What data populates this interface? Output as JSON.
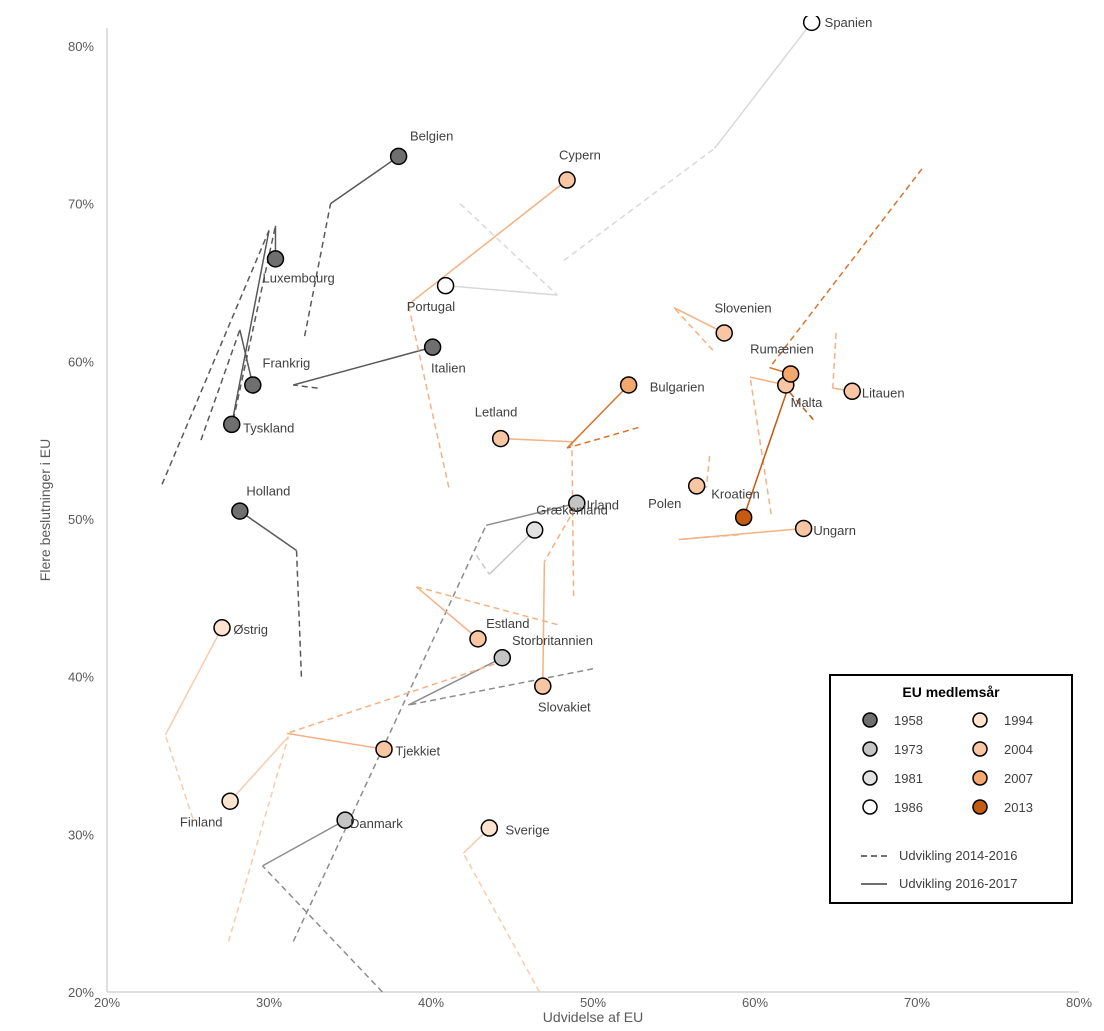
{
  "chart_data": {
    "type": "scatter",
    "title": "",
    "xlabel": "Udvidelse af EU",
    "ylabel": "Flere beslutninger i EU",
    "xlim": [
      0.2,
      0.8
    ],
    "ylim": [
      0.2,
      0.83
    ],
    "xticks": [
      {
        "v": 0.2,
        "label": "20%"
      },
      {
        "v": 0.3,
        "label": "30%"
      },
      {
        "v": 0.4,
        "label": "40%"
      },
      {
        "v": 0.5,
        "label": "50%"
      },
      {
        "v": 0.6,
        "label": "60%"
      },
      {
        "v": 0.7,
        "label": "70%"
      },
      {
        "v": 0.8,
        "label": "80%"
      }
    ],
    "yticks": [
      {
        "v": 0.2,
        "label": "20%"
      },
      {
        "v": 0.3,
        "label": "30%"
      },
      {
        "v": 0.4,
        "label": "40%"
      },
      {
        "v": 0.5,
        "label": "50%"
      },
      {
        "v": 0.6,
        "label": "60%"
      },
      {
        "v": 0.7,
        "label": "70%"
      },
      {
        "v": 0.8,
        "label": "80%"
      }
    ],
    "grid": false,
    "groups": {
      "1958": {
        "fill": "#6f6f6f",
        "line": "#595959"
      },
      "1973": {
        "fill": "#c4c4c4",
        "line": "#8c8c8c"
      },
      "1981": {
        "fill": "#e2e2e2",
        "line": "#c8c8c8"
      },
      "1986": {
        "fill": "#ffffff",
        "line": "#d9d9d9"
      },
      "1994": {
        "fill": "#fde3d0",
        "line": "#f8cbad"
      },
      "2004": {
        "fill": "#f8c6a3",
        "line": "#f4b183"
      },
      "2007": {
        "fill": "#f4a86e",
        "line": "#d9732e"
      },
      "2013": {
        "fill": "#c55a11",
        "line": "#c55a11"
      }
    },
    "legend": {
      "title": "EU medlemsår",
      "position": "bottom-right",
      "years": [
        "1958",
        "1973",
        "1981",
        "1986",
        "1994",
        "2004",
        "2007",
        "2013"
      ],
      "dashed_label": "Udvikling 2014-2016",
      "solid_label": "Udvikling 2016-2017"
    },
    "countries": [
      {
        "name": "Belgien",
        "group": "1958",
        "x": 0.38,
        "y": 0.73,
        "lx": 0.387,
        "ly": 0.74,
        "path": [
          [
            0.322,
            0.616
          ],
          [
            0.338,
            0.7
          ],
          [
            0.38,
            0.73
          ]
        ]
      },
      {
        "name": "Luxembourg",
        "group": "1958",
        "x": 0.304,
        "y": 0.665,
        "lx": 0.296,
        "ly": 0.65,
        "path": [
          [
            0.278,
            0.563
          ],
          [
            0.304,
            0.686
          ],
          [
            0.304,
            0.665
          ]
        ]
      },
      {
        "name": "Frankrig",
        "group": "1958",
        "x": 0.29,
        "y": 0.585,
        "lx": 0.296,
        "ly": 0.596,
        "path": [
          [
            0.258,
            0.55
          ],
          [
            0.282,
            0.62
          ],
          [
            0.29,
            0.585
          ]
        ]
      },
      {
        "name": "Tyskland",
        "group": "1958",
        "x": 0.277,
        "y": 0.56,
        "lx": 0.284,
        "ly": 0.555,
        "path": [
          [
            0.234,
            0.522
          ],
          [
            0.3,
            0.683
          ],
          [
            0.277,
            0.56
          ]
        ]
      },
      {
        "name": "Holland",
        "group": "1958",
        "x": 0.282,
        "y": 0.505,
        "lx": 0.286,
        "ly": 0.515,
        "path": [
          [
            0.32,
            0.4
          ],
          [
            0.317,
            0.48
          ],
          [
            0.282,
            0.505
          ]
        ]
      },
      {
        "name": "Italien",
        "group": "1958",
        "x": 0.401,
        "y": 0.609,
        "lx": 0.4,
        "ly": 0.593,
        "path": [
          [
            0.33,
            0.583
          ],
          [
            0.315,
            0.585
          ],
          [
            0.401,
            0.609
          ]
        ]
      },
      {
        "name": "Irland",
        "group": "1973",
        "x": 0.49,
        "y": 0.51,
        "lx": 0.496,
        "ly": 0.506,
        "path": [
          [
            0.315,
            0.232
          ],
          [
            0.434,
            0.496
          ],
          [
            0.49,
            0.51
          ]
        ]
      },
      {
        "name": "Storbritannien",
        "group": "1973",
        "x": 0.444,
        "y": 0.412,
        "lx": 0.45,
        "ly": 0.42,
        "path": [
          [
            0.5,
            0.405
          ],
          [
            0.386,
            0.382
          ],
          [
            0.444,
            0.412
          ]
        ]
      },
      {
        "name": "Danmark",
        "group": "1973",
        "x": 0.347,
        "y": 0.309,
        "lx": 0.35,
        "ly": 0.304,
        "path": [
          [
            0.37,
            0.2
          ],
          [
            0.296,
            0.28
          ],
          [
            0.347,
            0.309
          ]
        ]
      },
      {
        "name": "Grækenland",
        "group": "1981",
        "x": 0.464,
        "y": 0.493,
        "lx": 0.465,
        "ly": 0.503,
        "path": [
          [
            0.428,
            0.477
          ],
          [
            0.436,
            0.465
          ],
          [
            0.464,
            0.493
          ]
        ]
      },
      {
        "name": "Spanien",
        "group": "1986",
        "x": 0.635,
        "y": 0.815,
        "lx": 0.643,
        "ly": 0.812,
        "path": [
          [
            0.482,
            0.664
          ],
          [
            0.575,
            0.735
          ],
          [
            0.635,
            0.815
          ]
        ]
      },
      {
        "name": "Portugal",
        "group": "1986",
        "x": 0.409,
        "y": 0.648,
        "lx": 0.385,
        "ly": 0.632,
        "path": [
          [
            0.418,
            0.7
          ],
          [
            0.478,
            0.642
          ],
          [
            0.409,
            0.648
          ]
        ]
      },
      {
        "name": "Østrig",
        "group": "1994",
        "x": 0.271,
        "y": 0.431,
        "lx": 0.278,
        "ly": 0.427,
        "path": [
          [
            0.253,
            0.31
          ],
          [
            0.236,
            0.363
          ],
          [
            0.271,
            0.431
          ]
        ]
      },
      {
        "name": "Finland",
        "group": "1994",
        "x": 0.276,
        "y": 0.321,
        "lx": 0.245,
        "ly": 0.305,
        "path": [
          [
            0.275,
            0.232
          ],
          [
            0.312,
            0.362
          ],
          [
            0.276,
            0.321
          ]
        ]
      },
      {
        "name": "Sverige",
        "group": "1994",
        "x": 0.436,
        "y": 0.304,
        "lx": 0.446,
        "ly": 0.3,
        "path": [
          [
            0.467,
            0.2
          ],
          [
            0.42,
            0.288
          ],
          [
            0.436,
            0.304
          ]
        ]
      },
      {
        "name": "Cypern",
        "group": "2004",
        "x": 0.484,
        "y": 0.715,
        "lx": 0.479,
        "ly": 0.728,
        "path": [
          [
            0.411,
            0.52
          ],
          [
            0.386,
            0.636
          ],
          [
            0.484,
            0.715
          ]
        ]
      },
      {
        "name": "Letland",
        "group": "2004",
        "x": 0.443,
        "y": 0.551,
        "lx": 0.427,
        "ly": 0.565,
        "path": [
          [
            0.488,
            0.451
          ],
          [
            0.487,
            0.549
          ],
          [
            0.443,
            0.551
          ]
        ]
      },
      {
        "name": "Estland",
        "group": "2004",
        "x": 0.429,
        "y": 0.424,
        "lx": 0.434,
        "ly": 0.431,
        "path": [
          [
            0.478,
            0.433
          ],
          [
            0.391,
            0.457
          ],
          [
            0.429,
            0.424
          ]
        ]
      },
      {
        "name": "Slovakiet",
        "group": "2004",
        "x": 0.469,
        "y": 0.394,
        "lx": 0.466,
        "ly": 0.378,
        "path": [
          [
            0.489,
            0.507
          ],
          [
            0.47,
            0.473
          ],
          [
            0.469,
            0.394
          ]
        ]
      },
      {
        "name": "Tjekkiet",
        "group": "2004",
        "x": 0.371,
        "y": 0.354,
        "lx": 0.378,
        "ly": 0.35,
        "path": [
          [
            0.445,
            0.41
          ],
          [
            0.311,
            0.364
          ],
          [
            0.371,
            0.354
          ]
        ]
      },
      {
        "name": "Slovenien",
        "group": "2004",
        "x": 0.581,
        "y": 0.618,
        "lx": 0.575,
        "ly": 0.631,
        "path": [
          [
            0.574,
            0.607
          ],
          [
            0.55,
            0.634
          ],
          [
            0.581,
            0.618
          ]
        ]
      },
      {
        "name": "Polen",
        "group": "2004",
        "x": 0.564,
        "y": 0.521,
        "lx": 0.534,
        "ly": 0.507,
        "path": [
          [
            0.572,
            0.54
          ],
          [
            0.57,
            0.52
          ],
          [
            0.564,
            0.521
          ]
        ]
      },
      {
        "name": "Ungarn",
        "group": "2004",
        "x": 0.63,
        "y": 0.494,
        "lx": 0.636,
        "ly": 0.49,
        "path": [
          [
            0.59,
            0.49
          ],
          [
            0.553,
            0.487
          ],
          [
            0.63,
            0.494
          ]
        ]
      },
      {
        "name": "Litauen",
        "group": "2004",
        "x": 0.66,
        "y": 0.581,
        "lx": 0.666,
        "ly": 0.577,
        "path": [
          [
            0.65,
            0.618
          ],
          [
            0.648,
            0.583
          ],
          [
            0.66,
            0.581
          ]
        ]
      },
      {
        "name": "Malta",
        "group": "2004",
        "x": 0.619,
        "y": 0.585,
        "lx": 0.622,
        "ly": 0.571,
        "path": [
          [
            0.61,
            0.503
          ],
          [
            0.597,
            0.59
          ],
          [
            0.619,
            0.585
          ]
        ]
      },
      {
        "name": "Bulgarien",
        "group": "2007",
        "x": 0.522,
        "y": 0.585,
        "lx": 0.535,
        "ly": 0.581,
        "path": [
          [
            0.528,
            0.558
          ],
          [
            0.484,
            0.545
          ],
          [
            0.522,
            0.585
          ]
        ]
      },
      {
        "name": "Rumænien",
        "group": "2007",
        "x": 0.622,
        "y": 0.592,
        "lx": 0.597,
        "ly": 0.605,
        "path": [
          [
            0.703,
            0.722
          ],
          [
            0.609,
            0.596
          ],
          [
            0.622,
            0.592
          ]
        ]
      },
      {
        "name": "Kroatien",
        "group": "2013",
        "x": 0.593,
        "y": 0.501,
        "lx": 0.573,
        "ly": 0.513,
        "path": [
          [
            0.636,
            0.563
          ],
          [
            0.62,
            0.582
          ],
          [
            0.593,
            0.501
          ]
        ]
      }
    ]
  }
}
